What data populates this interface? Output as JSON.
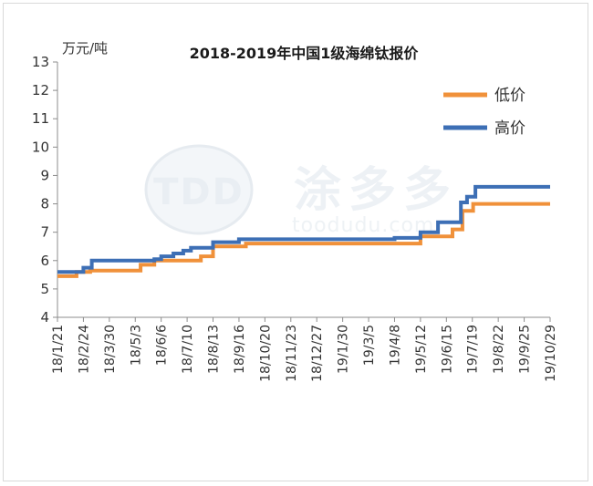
{
  "chart_data": {
    "type": "line",
    "step": true,
    "title": "2018-2019年中国1级海绵钛报价",
    "unit_label": "万元/吨",
    "ylim": [
      4,
      13
    ],
    "yticks": [
      4,
      5,
      6,
      7,
      8,
      9,
      10,
      11,
      12,
      13
    ],
    "x_tick_labels": [
      "18/1/21",
      "18/2/24",
      "18/3/30",
      "18/5/3",
      "18/6/6",
      "18/7/10",
      "18/8/13",
      "18/9/16",
      "18/10/20",
      "18/11/23",
      "18/12/27",
      "19/1/30",
      "19/3/5",
      "19/4/8",
      "19/5/12",
      "19/6/15",
      "19/7/19",
      "19/8/22",
      "19/9/25",
      "19/10/29"
    ],
    "legend_position": "top-right",
    "series": [
      {
        "name": "低价",
        "color": "#f0913a",
        "points": [
          {
            "x": "18/1/21",
            "y": 5.45
          },
          {
            "x": "18/2/15",
            "y": 5.6
          },
          {
            "x": "18/3/5",
            "y": 5.65
          },
          {
            "x": "18/5/10",
            "y": 5.85
          },
          {
            "x": "18/5/28",
            "y": 6.0
          },
          {
            "x": "18/7/28",
            "y": 6.15
          },
          {
            "x": "18/8/13",
            "y": 6.5
          },
          {
            "x": "18/9/25",
            "y": 6.6
          },
          {
            "x": "19/5/12",
            "y": 6.85
          },
          {
            "x": "19/6/23",
            "y": 7.1
          },
          {
            "x": "19/7/6",
            "y": 7.75
          },
          {
            "x": "19/7/20",
            "y": 8.0
          },
          {
            "x": "19/10/29",
            "y": 8.0
          }
        ]
      },
      {
        "name": "高价",
        "color": "#3d6fb5",
        "points": [
          {
            "x": "18/1/21",
            "y": 5.6
          },
          {
            "x": "18/2/24",
            "y": 5.75
          },
          {
            "x": "18/3/7",
            "y": 6.0
          },
          {
            "x": "18/5/28",
            "y": 6.05
          },
          {
            "x": "18/6/6",
            "y": 6.15
          },
          {
            "x": "18/6/22",
            "y": 6.25
          },
          {
            "x": "18/7/5",
            "y": 6.35
          },
          {
            "x": "18/7/15",
            "y": 6.45
          },
          {
            "x": "18/8/13",
            "y": 6.65
          },
          {
            "x": "18/9/16",
            "y": 6.75
          },
          {
            "x": "19/4/8",
            "y": 6.8
          },
          {
            "x": "19/5/12",
            "y": 7.0
          },
          {
            "x": "19/6/4",
            "y": 7.35
          },
          {
            "x": "19/7/4",
            "y": 8.05
          },
          {
            "x": "19/7/12",
            "y": 8.25
          },
          {
            "x": "19/7/23",
            "y": 8.6
          },
          {
            "x": "19/10/29",
            "y": 8.6
          }
        ]
      }
    ]
  },
  "watermark": {
    "logo_text": "TDD",
    "chinese_text": "涂多多",
    "url_text": "toodudu.com"
  }
}
